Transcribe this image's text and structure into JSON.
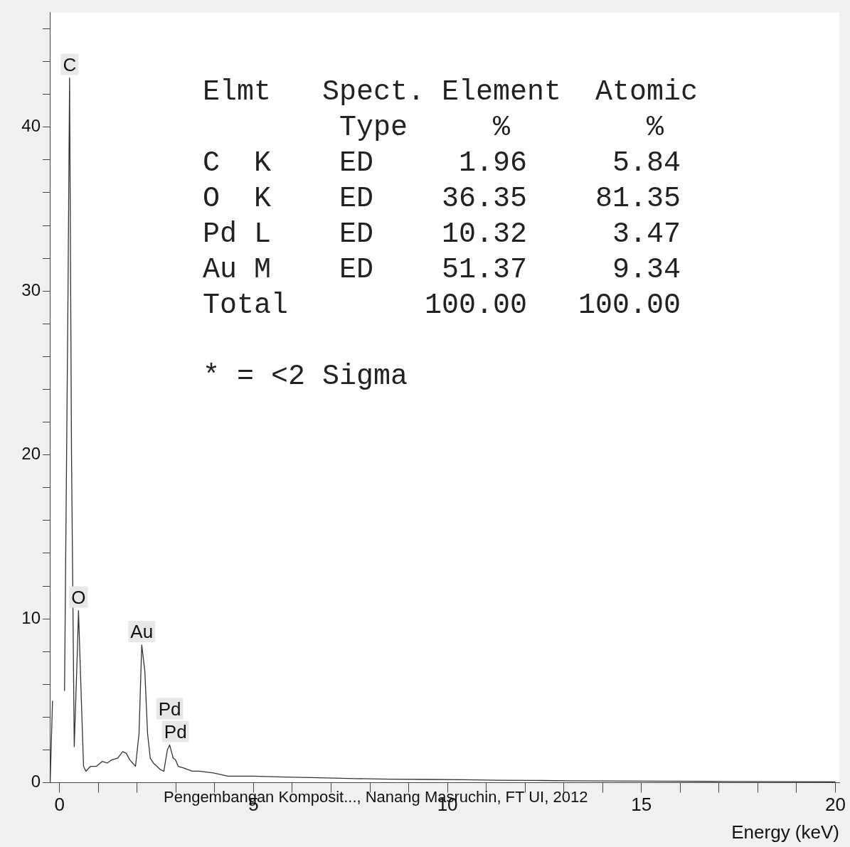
{
  "chart_data": {
    "type": "line",
    "xlabel": "Energy (keV)",
    "color": "#333333",
    "legend": false,
    "grid": false,
    "marker": "none",
    "x": [
      -0.24,
      -0.18,
      -0.13,
      0.02,
      0.13,
      0.22,
      0.26,
      0.31,
      0.38,
      0.46,
      0.49,
      0.55,
      0.62,
      0.68,
      0.8,
      0.95,
      1.1,
      1.23,
      1.35,
      1.5,
      1.63,
      1.72,
      1.81,
      1.96,
      2.05,
      2.12,
      2.2,
      2.27,
      2.34,
      2.42,
      2.51,
      2.6,
      2.69,
      2.78,
      2.84,
      2.93,
      2.99,
      3.06,
      3.2,
      3.42,
      3.6,
      3.97,
      4.34,
      5.0,
      5.8,
      6.7,
      7.64,
      8.5,
      9.47,
      10.4,
      11.3,
      12.2,
      13.1,
      15.0,
      16.8,
      18.5,
      20.0
    ],
    "values": [
      0,
      5,
      null,
      null,
      5.6,
      30,
      43,
      20,
      2.2,
      8,
      10.5,
      6,
      1,
      0.7,
      1.0,
      1.0,
      1.3,
      1.2,
      1.4,
      1.5,
      1.9,
      1.8,
      1.4,
      1.0,
      3,
      8.4,
      6.8,
      3,
      1.5,
      1.2,
      1.0,
      0.8,
      0.7,
      2.0,
      2.3,
      1.5,
      1.4,
      1.0,
      0.9,
      0.7,
      0.7,
      0.6,
      0.4,
      0.4,
      0.35,
      0.3,
      0.25,
      0.22,
      0.2,
      0.18,
      0.15,
      0.14,
      0.12,
      0.1,
      0.08,
      0.06,
      0.05
    ],
    "xlim": [
      -0.25,
      20.1
    ],
    "ylim": [
      0,
      47
    ],
    "xticks": [
      {
        "value": 0,
        "label": "0"
      },
      {
        "value": 1,
        "label": null
      },
      {
        "value": 2,
        "label": null
      },
      {
        "value": 3,
        "label": null
      },
      {
        "value": 4,
        "label": null
      },
      {
        "value": 5,
        "label": "5"
      },
      {
        "value": 6,
        "label": null
      },
      {
        "value": 7,
        "label": null
      },
      {
        "value": 8,
        "label": null
      },
      {
        "value": 9,
        "label": null
      },
      {
        "value": 10,
        "label": "10"
      },
      {
        "value": 11,
        "label": null
      },
      {
        "value": 12,
        "label": null
      },
      {
        "value": 13,
        "label": null
      },
      {
        "value": 14,
        "label": null
      },
      {
        "value": 15,
        "label": "15"
      },
      {
        "value": 16,
        "label": null
      },
      {
        "value": 17,
        "label": null
      },
      {
        "value": 18,
        "label": null
      },
      {
        "value": 19,
        "label": null
      },
      {
        "value": 20,
        "label": "20"
      }
    ],
    "yticks": [
      {
        "value": 0,
        "label": "0"
      },
      {
        "value": 2,
        "label": null
      },
      {
        "value": 4,
        "label": null
      },
      {
        "value": 6,
        "label": null
      },
      {
        "value": 8,
        "label": null
      },
      {
        "value": 10,
        "label": "10"
      },
      {
        "value": 12,
        "label": null
      },
      {
        "value": 14,
        "label": null
      },
      {
        "value": 16,
        "label": null
      },
      {
        "value": 18,
        "label": null
      },
      {
        "value": 20,
        "label": "20"
      },
      {
        "value": 22,
        "label": null
      },
      {
        "value": 24,
        "label": null
      },
      {
        "value": 26,
        "label": null
      },
      {
        "value": 28,
        "label": null
      },
      {
        "value": 30,
        "label": "30"
      },
      {
        "value": 32,
        "label": null
      },
      {
        "value": 34,
        "label": null
      },
      {
        "value": 36,
        "label": null
      },
      {
        "value": 38,
        "label": null
      },
      {
        "value": 40,
        "label": "40"
      },
      {
        "value": 42,
        "label": null
      },
      {
        "value": 44,
        "label": null
      },
      {
        "value": 46,
        "label": null
      }
    ],
    "annotations": [
      {
        "text": "C",
        "x": 0.26,
        "y": 43
      },
      {
        "text": "O",
        "x": 0.49,
        "y": 10.5
      },
      {
        "text": "Au",
        "x": 2.12,
        "y": 8.4
      },
      {
        "text": "Pd",
        "x": 2.99,
        "y": 1.4
      },
      {
        "text": "Pd",
        "x": 2.84,
        "y": 2.3
      },
      "Elmt   Spect. Element  Atomic",
      "        Type     %        %",
      "C  K    ED     1.96     5.84",
      "O  K    ED    36.35    81.35",
      "Pd L    ED    10.32     3.47",
      "Au M    ED    51.37     9.34",
      "Total        100.00   100.00",
      "* = <2 Sigma",
      "Pengembangan Komposit..., Nanang Masruchin, FT UI, 2012"
    ]
  }
}
